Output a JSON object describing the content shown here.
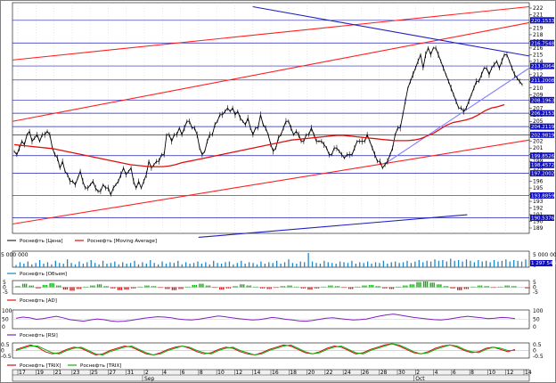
{
  "chart_data": {
    "type": "line",
    "price_axis": {
      "ticks": [
        "189",
        "190",
        "191",
        "192",
        "193",
        "194",
        "195",
        "196",
        "197",
        "198",
        "199",
        "200",
        "201",
        "202",
        "203",
        "204",
        "205",
        "206",
        "207",
        "208",
        "209",
        "210",
        "211",
        "212",
        "213",
        "214",
        "215",
        "216",
        "217",
        "218",
        "219",
        "220",
        "221",
        "222"
      ],
      "min": 189,
      "max": 222
    },
    "level_labels": [
      "220.1533",
      "216.7548",
      "213.3064",
      "211.2008",
      "208.1963",
      "206.2153",
      "204.2119",
      "202.9819",
      "199.8526",
      "197.2002",
      "193.8859",
      "190.5376",
      "198.4572"
    ],
    "price_series": {
      "name": "Роснефть [Цена]",
      "values": [
        200.5,
        200,
        201,
        202,
        201.5,
        203,
        203.5,
        202,
        202.5,
        203,
        202,
        203,
        203,
        203.5,
        203,
        201,
        200,
        199.5,
        198,
        199,
        197.5,
        197,
        196,
        196,
        195.5,
        196.5,
        197.5,
        196,
        195,
        195,
        195.5,
        196,
        195,
        194.5,
        194.5,
        195.5,
        195,
        195,
        194,
        195,
        195.5,
        196,
        197,
        198,
        197,
        197.5,
        198,
        196,
        195,
        196,
        195,
        196,
        197,
        199,
        198,
        198.5,
        199,
        199,
        200,
        200,
        203,
        203,
        202,
        203,
        203,
        204,
        203,
        204,
        205,
        205,
        204,
        204,
        203,
        201,
        200,
        200.5,
        202,
        203,
        203,
        204.5,
        205,
        206,
        206,
        206.5,
        207,
        206.5,
        207,
        206,
        206.5,
        205.5,
        205,
        204.5,
        205.5,
        204,
        203,
        204,
        204,
        206,
        204.5,
        204,
        203,
        201.5,
        200.5,
        201,
        202.5,
        203,
        204,
        205,
        205,
        204,
        203,
        203.5,
        203,
        202,
        202,
        203,
        203,
        204,
        203,
        202,
        202,
        202,
        201.5,
        201,
        200,
        200,
        201,
        201,
        200.5,
        200,
        199.5,
        200,
        200,
        200,
        201,
        202,
        202,
        202,
        202,
        203,
        202,
        201,
        200,
        199,
        199,
        198,
        198.5,
        199,
        200,
        201,
        203,
        204,
        204,
        206,
        208,
        210,
        211,
        212,
        213,
        214,
        215,
        213,
        215,
        216,
        215,
        216,
        216,
        215,
        214,
        213,
        212,
        211,
        210,
        209,
        208,
        207,
        207,
        206.5,
        207,
        208,
        209,
        210,
        211,
        211,
        212,
        213,
        213,
        212,
        213,
        213.5,
        214,
        213,
        214,
        215,
        215,
        214,
        213,
        212,
        211.5,
        211,
        210.5
      ]
    },
    "ma_series": {
      "name": "Роснефть [Moving Average]",
      "values": [
        201.5,
        201.4,
        201.3,
        201.2,
        201.1,
        201,
        200.9,
        200.7,
        200.5,
        200.3,
        200.1,
        199.9,
        199.7,
        199.5,
        199.3,
        199.1,
        198.9,
        198.7,
        198.5,
        198.4,
        198.3,
        198.2,
        198.2,
        198.2,
        198.3,
        198.5,
        198.8,
        199,
        199.2,
        199.4,
        199.6,
        199.8,
        200,
        200.2,
        200.4,
        200.6,
        200.8,
        201,
        201.2,
        201.4,
        201.6,
        201.8,
        202,
        202.2,
        202.3,
        202.4,
        202.5,
        202.6,
        202.7,
        202.8,
        202.9,
        202.9,
        202.8,
        202.7,
        202.6,
        202.5,
        202.4,
        202.3,
        202.2,
        202.1,
        202.1,
        202.1,
        202.2,
        202.4,
        202.8,
        203.2,
        203.8,
        204.4,
        204.8,
        205,
        205.2,
        205.5,
        206,
        206.6,
        207,
        207.2,
        207.5
      ]
    },
    "channel_lines": [
      {
        "name": "red-channel-top",
        "color": "#ff2020",
        "points": [
          [
            0.0,
            214.2
          ],
          [
            1.0,
            222.2
          ]
        ]
      },
      {
        "name": "red-channel-mid",
        "color": "#ff2020",
        "points": [
          [
            0.0,
            205.0
          ],
          [
            1.0,
            219.8
          ]
        ]
      },
      {
        "name": "red-channel-bottom",
        "color": "#ff2020",
        "points": [
          [
            0.0,
            189.6
          ],
          [
            1.0,
            202.2
          ]
        ]
      },
      {
        "name": "blue-resistance",
        "color": "#2020c0",
        "points": [
          [
            0.465,
            222.2
          ],
          [
            1.0,
            214.8
          ]
        ]
      },
      {
        "name": "blue-support",
        "color": "#8080ff",
        "points": [
          [
            0.72,
            198.6
          ],
          [
            1.0,
            213.0
          ]
        ]
      },
      {
        "name": "blue-lower",
        "color": "#2020c0",
        "points": [
          [
            0.36,
            187.6
          ],
          [
            0.88,
            191.0
          ]
        ]
      }
    ],
    "volume": {
      "name": "Роснефть [Объем]",
      "ticks": [
        "5 000 000",
        "0"
      ],
      "last_label": "1 297 543",
      "values": [
        0.15,
        0.35,
        0.25,
        0.4,
        0.2,
        0.3,
        0.5,
        0.25,
        0.35,
        0.2,
        0.45,
        0.3,
        0.25,
        0.55,
        0.3,
        0.2,
        0.4,
        0.25,
        0.35,
        0.5,
        0.3,
        0.2,
        0.45,
        0.25,
        0.3,
        0.4,
        0.2,
        0.35,
        0.25,
        0.3,
        0.45,
        0.2,
        0.35,
        0.25,
        0.5,
        0.3,
        0.2,
        0.4,
        0.25,
        0.35,
        0.3,
        0.45,
        0.2,
        0.35,
        0.25,
        0.3,
        0.4,
        0.25,
        0.35,
        0.2,
        0.45,
        0.3,
        0.25,
        0.35,
        0.4,
        0.2,
        0.3,
        0.45,
        0.25,
        0.35,
        0.3,
        0.2,
        0.4,
        0.25,
        0.35,
        0.3,
        0.45,
        0.25,
        0.35,
        0.55,
        0.3,
        0.25,
        0.4,
        0.35,
        1.0,
        0.4,
        0.3,
        0.25,
        0.45,
        0.35,
        0.3,
        0.25,
        0.4,
        0.35,
        0.3,
        0.45,
        0.25,
        0.35,
        0.3,
        0.4,
        0.25,
        0.35,
        0.3,
        0.45,
        0.25,
        0.35,
        0.4,
        0.3,
        0.35,
        0.45,
        0.3,
        0.4,
        0.5,
        0.35,
        0.45,
        0.4,
        0.55,
        0.45,
        0.5,
        0.4,
        0.6,
        0.45,
        0.5,
        0.4,
        0.55,
        0.45,
        0.35,
        0.5,
        0.4,
        0.45,
        0.35,
        0.5,
        0.4,
        0.45,
        0.55,
        0.4,
        0.5,
        0.45,
        0.4,
        0.55
      ]
    },
    "ad": {
      "name": "Роснефть [AD]",
      "ticks": [
        "5",
        "0",
        "-5"
      ],
      "values": [
        0.2,
        0.6,
        0.3,
        -0.2,
        0.4,
        0.7,
        0.3,
        -0.4,
        -0.6,
        -0.3,
        0.1,
        0.3,
        0.5,
        0.2,
        -0.2,
        -0.5,
        -0.4,
        -0.2,
        0.1,
        0.3,
        0.2,
        -0.1,
        -0.3,
        -0.5,
        -0.3,
        0.1,
        0.4,
        0.6,
        0.3,
        -0.1,
        -0.4,
        -0.2,
        0.2,
        0.5,
        0.3,
        0.1,
        -0.2,
        -0.3,
        -0.1,
        0.2,
        0.3,
        0.1,
        -0.2,
        -0.4,
        -0.2,
        0.1,
        0.3,
        0.2,
        -0.1,
        -0.3,
        0.1,
        0.3,
        0.4,
        0.2,
        -0.2,
        -0.3,
        0.1,
        0.3,
        0.5,
        0.9,
        1.0,
        0.8,
        0.5,
        0.2,
        -0.2,
        -0.5,
        -0.3,
        0.1,
        0.3,
        0.2,
        -0.1,
        0.1,
        0.3,
        0.2,
        0.0,
        -0.2
      ]
    },
    "rsi": {
      "name": "Роснефть [RSI]",
      "ticks": [
        "100",
        "50",
        "0"
      ],
      "values": [
        0.55,
        0.62,
        0.58,
        0.5,
        0.54,
        0.6,
        0.66,
        0.58,
        0.48,
        0.44,
        0.4,
        0.46,
        0.52,
        0.48,
        0.42,
        0.38,
        0.4,
        0.44,
        0.5,
        0.56,
        0.6,
        0.64,
        0.62,
        0.58,
        0.52,
        0.48,
        0.46,
        0.5,
        0.56,
        0.62,
        0.68,
        0.64,
        0.58,
        0.54,
        0.5,
        0.46,
        0.48,
        0.54,
        0.6,
        0.56,
        0.5,
        0.46,
        0.42,
        0.4,
        0.44,
        0.5,
        0.56,
        0.58,
        0.54,
        0.5,
        0.46,
        0.48,
        0.52,
        0.6,
        0.68,
        0.74,
        0.78,
        0.72,
        0.66,
        0.6,
        0.56,
        0.52,
        0.48,
        0.46,
        0.5,
        0.56,
        0.62,
        0.66,
        0.62,
        0.58,
        0.54,
        0.56,
        0.6,
        0.58,
        0.54
      ]
    },
    "trix": {
      "series": [
        {
          "name": "Роснефть [TRIX]",
          "color": "#d01010"
        },
        {
          "name": "Роснефть [TRIX]",
          "color": "#10b010"
        }
      ],
      "ticks": [
        "0.5",
        "0",
        "-0.5"
      ],
      "values_a": [
        0.1,
        0.3,
        0.5,
        0.3,
        -0.1,
        -0.3,
        -0.2,
        0.1,
        0.3,
        0.2,
        -0.1,
        -0.4,
        -0.3,
        0.0,
        0.2,
        0.4,
        0.3,
        0.0,
        -0.3,
        -0.4,
        -0.2,
        0.1,
        0.3,
        0.4,
        0.2,
        -0.1,
        -0.3,
        -0.2,
        0.1,
        0.3,
        0.2,
        -0.1,
        -0.3,
        -0.4,
        -0.2,
        0.1,
        0.3,
        0.5,
        0.4,
        0.1,
        -0.2,
        -0.3,
        -0.1,
        0.2,
        0.4,
        0.3,
        0.0,
        -0.3,
        -0.2,
        0.1,
        0.3,
        0.5,
        0.6,
        0.4,
        0.1,
        -0.2,
        -0.3,
        -0.1,
        0.2,
        0.4,
        0.5,
        0.3,
        0.0,
        -0.2,
        -0.1,
        0.2,
        0.3,
        0.1,
        -0.1,
        0.1
      ],
      "values_b": [
        0.0,
        0.2,
        0.4,
        0.4,
        0.1,
        -0.2,
        -0.3,
        0.0,
        0.2,
        0.3,
        0.0,
        -0.3,
        -0.4,
        -0.1,
        0.1,
        0.3,
        0.4,
        0.1,
        -0.2,
        -0.4,
        -0.3,
        0.0,
        0.2,
        0.4,
        0.3,
        0.0,
        -0.2,
        -0.3,
        0.0,
        0.2,
        0.3,
        0.0,
        -0.2,
        -0.4,
        -0.3,
        0.0,
        0.2,
        0.4,
        0.5,
        0.2,
        -0.1,
        -0.3,
        -0.2,
        0.1,
        0.3,
        0.4,
        0.1,
        -0.2,
        -0.3,
        0.0,
        0.2,
        0.4,
        0.6,
        0.5,
        0.2,
        -0.1,
        -0.3,
        -0.2,
        0.1,
        0.3,
        0.5,
        0.4,
        0.1,
        -0.1,
        -0.2,
        0.1,
        0.3,
        0.2,
        0.0,
        0.0
      ]
    },
    "x_axis": {
      "day_labels": [
        "17",
        "19",
        "21",
        "23",
        "25",
        "27",
        "31",
        "2",
        "4",
        "6",
        "8",
        "10",
        "12",
        "14",
        "16",
        "18",
        "20",
        "22",
        "24",
        "26",
        "28",
        "30",
        "2",
        "4",
        "6",
        "8",
        "10",
        "12",
        "14"
      ],
      "month_labels": [
        "Sep",
        "Oct"
      ]
    }
  },
  "legend": {
    "price": "Роснефть [Цена]",
    "ma": "Роснефть [Moving Average]",
    "volume": "Роснефть [Объем]",
    "ad": "Роснефть [AD]",
    "rsi": "Роснефть [RSI]",
    "trix_a": "Роснефть [TRIX]",
    "trix_b": "Роснефть [TRIX]"
  },
  "colors": {
    "price": "#000000",
    "ma": "#e01010",
    "level_line": "#2020b0",
    "level_box": "#1010c0",
    "volume": "#1a86c8",
    "ad_pos": "#10b010",
    "ad_neg": "#e01010",
    "rsi": "#8020c0",
    "grid": "#c8c8c8"
  }
}
